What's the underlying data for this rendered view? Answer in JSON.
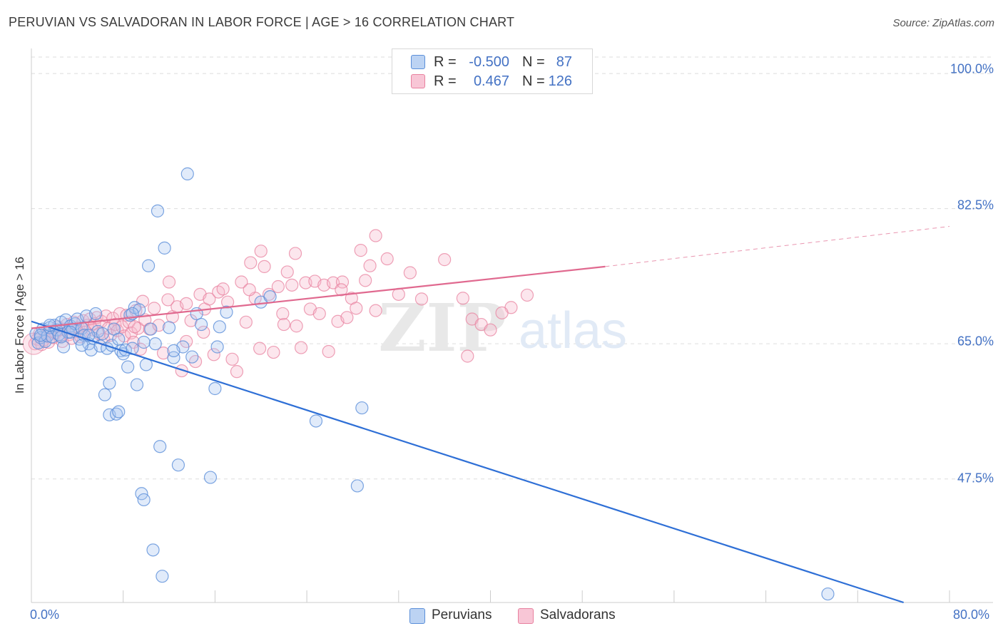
{
  "title": "PERUVIAN VS SALVADORAN IN LABOR FORCE | AGE > 16 CORRELATION CHART",
  "source": "Source: ZipAtlas.com",
  "watermark": {
    "zip": "ZIP",
    "atlas": "atlas"
  },
  "legend": {
    "rows": [
      {
        "r_label": "R =",
        "r_value": "-0.500",
        "n_label": "N =",
        "n_value": "87"
      },
      {
        "r_label": "R =",
        "r_value": "0.467",
        "n_label": "N =",
        "n_value": "126"
      }
    ]
  },
  "bottom_legend": {
    "peruvians": "Peruvians",
    "salvadorans": "Salvadorans"
  },
  "colors": {
    "peruvian_fill": "#a9c6f0",
    "peruvian_stroke": "#5b8fd9",
    "peruvian_line": "#2e6fd6",
    "salvadoran_fill": "#f5b8cc",
    "salvadoran_stroke": "#e8819f",
    "salvadoran_line": "#e0698f",
    "tick_label": "#4472c4",
    "grid": "#dddddd"
  },
  "chart_data": {
    "type": "scatter",
    "title": "PERUVIAN VS SALVADORAN IN LABOR FORCE | AGE > 16 CORRELATION CHART",
    "xlabel": "",
    "ylabel": "In Labor Force | Age > 16",
    "xlim": [
      0,
      80
    ],
    "ylim": [
      31.5,
      102.5
    ],
    "x_tick_labels": [
      "0.0%",
      "80.0%"
    ],
    "y_ticks": [
      47.5,
      65.0,
      82.5,
      100.0
    ],
    "y_tick_labels": [
      "47.5%",
      "65.0%",
      "82.5%",
      "100.0%"
    ],
    "grid": "horizontal dashed",
    "legend_position": "top-center",
    "series": [
      {
        "name": "Peruvians",
        "r": -0.5,
        "n": 87,
        "trend": {
          "x0": 0.0,
          "y0": 67.9,
          "x1": 76.0,
          "y1": 31.5
        },
        "points": [
          [
            0.4,
            66.3
          ],
          [
            0.6,
            65.1
          ],
          [
            0.8,
            65.8
          ],
          [
            1.0,
            66.9
          ],
          [
            1.2,
            65.3
          ],
          [
            1.4,
            66.0
          ],
          [
            1.6,
            67.1
          ],
          [
            1.8,
            65.9
          ],
          [
            2.0,
            67.4
          ],
          [
            2.2,
            66.8
          ],
          [
            2.4,
            66.2
          ],
          [
            2.6,
            67.8
          ],
          [
            2.8,
            64.6
          ],
          [
            3.0,
            68.1
          ],
          [
            3.2,
            66.5
          ],
          [
            3.4,
            67.3
          ],
          [
            3.6,
            66.9
          ],
          [
            3.8,
            67.6
          ],
          [
            4.0,
            68.2
          ],
          [
            4.2,
            65.6
          ],
          [
            4.4,
            67.0
          ],
          [
            4.6,
            66.1
          ],
          [
            4.8,
            68.6
          ],
          [
            5.0,
            65.0
          ],
          [
            5.2,
            64.2
          ],
          [
            5.4,
            65.7
          ],
          [
            5.6,
            68.9
          ],
          [
            5.8,
            66.6
          ],
          [
            6.0,
            64.7
          ],
          [
            6.2,
            66.3
          ],
          [
            6.4,
            58.4
          ],
          [
            6.6,
            64.4
          ],
          [
            6.8,
            55.8
          ],
          [
            7.0,
            64.8
          ],
          [
            7.2,
            66.9
          ],
          [
            7.4,
            55.9
          ],
          [
            7.6,
            56.2
          ],
          [
            7.8,
            64.1
          ],
          [
            8.0,
            63.7
          ],
          [
            8.2,
            64.2
          ],
          [
            8.4,
            62.0
          ],
          [
            8.6,
            68.7
          ],
          [
            8.8,
            64.4
          ],
          [
            9.0,
            69.7
          ],
          [
            9.2,
            59.7
          ],
          [
            9.4,
            69.4
          ],
          [
            9.6,
            45.6
          ],
          [
            9.8,
            44.8
          ],
          [
            10.0,
            62.3
          ],
          [
            10.4,
            66.9
          ],
          [
            10.8,
            65.0
          ],
          [
            11.0,
            82.2
          ],
          [
            11.2,
            51.7
          ],
          [
            11.6,
            77.4
          ],
          [
            12.0,
            67.1
          ],
          [
            12.4,
            63.2
          ],
          [
            12.8,
            49.3
          ],
          [
            13.2,
            64.6
          ],
          [
            13.6,
            87.0
          ],
          [
            14.0,
            63.3
          ],
          [
            14.4,
            68.9
          ],
          [
            14.8,
            67.5
          ],
          [
            15.6,
            47.7
          ],
          [
            16.0,
            59.2
          ],
          [
            16.2,
            64.6
          ],
          [
            16.4,
            67.2
          ],
          [
            17.0,
            69.1
          ],
          [
            10.2,
            75.1
          ],
          [
            10.6,
            38.3
          ],
          [
            11.4,
            34.9
          ],
          [
            8.8,
            68.9
          ],
          [
            6.8,
            59.9
          ],
          [
            20.0,
            70.4
          ],
          [
            20.8,
            71.1
          ],
          [
            24.8,
            55.0
          ],
          [
            28.4,
            46.6
          ],
          [
            28.8,
            56.7
          ],
          [
            69.4,
            32.6
          ],
          [
            3.4,
            66.5
          ],
          [
            2.6,
            65.9
          ],
          [
            1.6,
            67.4
          ],
          [
            0.8,
            66.1
          ],
          [
            5.0,
            66.1
          ],
          [
            7.6,
            65.6
          ],
          [
            9.8,
            65.2
          ],
          [
            4.4,
            64.8
          ],
          [
            12.4,
            64.1
          ]
        ]
      },
      {
        "name": "Salvadorans",
        "r": 0.467,
        "n": 126,
        "trend": {
          "x0": 0.0,
          "y0": 67.0,
          "x1": 50.0,
          "y1": 75.0
        },
        "trend_ext": {
          "x0": 50.0,
          "y0": 75.0,
          "x1": 80.0,
          "y1": 80.2
        },
        "points": [
          [
            0.3,
            65.0
          ],
          [
            0.5,
            65.6
          ],
          [
            0.7,
            66.3
          ],
          [
            0.9,
            64.9
          ],
          [
            1.1,
            65.5
          ],
          [
            1.3,
            66.1
          ],
          [
            1.5,
            65.2
          ],
          [
            1.7,
            66.6
          ],
          [
            1.9,
            65.8
          ],
          [
            2.1,
            66.4
          ],
          [
            2.3,
            67.2
          ],
          [
            2.5,
            66.0
          ],
          [
            2.7,
            65.3
          ],
          [
            2.9,
            66.9
          ],
          [
            3.1,
            67.5
          ],
          [
            3.3,
            66.2
          ],
          [
            3.5,
            65.7
          ],
          [
            3.7,
            67.8
          ],
          [
            3.9,
            66.6
          ],
          [
            4.1,
            67.1
          ],
          [
            4.3,
            65.9
          ],
          [
            4.5,
            68.0
          ],
          [
            4.7,
            66.5
          ],
          [
            4.9,
            67.4
          ],
          [
            5.1,
            68.2
          ],
          [
            5.3,
            66.8
          ],
          [
            5.5,
            67.6
          ],
          [
            5.7,
            68.4
          ],
          [
            5.9,
            66.3
          ],
          [
            6.1,
            67.9
          ],
          [
            6.3,
            65.6
          ],
          [
            6.5,
            68.6
          ],
          [
            6.7,
            67.0
          ],
          [
            6.9,
            66.1
          ],
          [
            7.1,
            68.3
          ],
          [
            7.3,
            67.5
          ],
          [
            7.5,
            66.7
          ],
          [
            7.7,
            68.9
          ],
          [
            7.9,
            67.2
          ],
          [
            8.1,
            66.0
          ],
          [
            8.3,
            68.7
          ],
          [
            8.5,
            67.8
          ],
          [
            8.7,
            66.4
          ],
          [
            8.9,
            65.2
          ],
          [
            9.1,
            69.3
          ],
          [
            9.3,
            67.0
          ],
          [
            9.5,
            64.3
          ],
          [
            9.7,
            70.5
          ],
          [
            9.9,
            68.1
          ],
          [
            10.3,
            66.9
          ],
          [
            10.7,
            69.6
          ],
          [
            11.1,
            67.4
          ],
          [
            11.5,
            63.8
          ],
          [
            11.9,
            70.7
          ],
          [
            12.3,
            68.5
          ],
          [
            12.7,
            69.8
          ],
          [
            13.1,
            61.5
          ],
          [
            13.5,
            70.2
          ],
          [
            13.9,
            68.0
          ],
          [
            14.3,
            62.7
          ],
          [
            14.7,
            71.4
          ],
          [
            15.1,
            69.5
          ],
          [
            15.5,
            70.8
          ],
          [
            15.9,
            63.6
          ],
          [
            16.3,
            71.7
          ],
          [
            16.7,
            72.1
          ],
          [
            17.1,
            70.4
          ],
          [
            17.5,
            63.0
          ],
          [
            17.9,
            61.4
          ],
          [
            18.3,
            73.0
          ],
          [
            18.7,
            67.8
          ],
          [
            19.1,
            75.5
          ],
          [
            19.5,
            70.9
          ],
          [
            19.9,
            64.4
          ],
          [
            20.3,
            75.0
          ],
          [
            20.7,
            71.4
          ],
          [
            21.1,
            63.9
          ],
          [
            21.5,
            72.4
          ],
          [
            21.9,
            68.9
          ],
          [
            22.3,
            74.3
          ],
          [
            22.7,
            72.6
          ],
          [
            23.1,
            67.3
          ],
          [
            23.5,
            64.5
          ],
          [
            23.9,
            72.9
          ],
          [
            24.3,
            69.5
          ],
          [
            24.7,
            73.1
          ],
          [
            25.1,
            68.9
          ],
          [
            25.5,
            72.6
          ],
          [
            25.9,
            64.0
          ],
          [
            26.3,
            72.9
          ],
          [
            26.7,
            67.9
          ],
          [
            27.1,
            73.0
          ],
          [
            27.5,
            68.4
          ],
          [
            27.9,
            70.9
          ],
          [
            28.3,
            69.6
          ],
          [
            28.7,
            77.1
          ],
          [
            29.1,
            73.2
          ],
          [
            29.5,
            75.1
          ],
          [
            30.0,
            69.3
          ],
          [
            31.0,
            76.0
          ],
          [
            32.0,
            71.4
          ],
          [
            33.0,
            74.2
          ],
          [
            34.0,
            70.8
          ],
          [
            36.0,
            75.9
          ],
          [
            37.6,
            70.9
          ],
          [
            38.0,
            63.4
          ],
          [
            38.4,
            68.2
          ],
          [
            39.2,
            67.5
          ],
          [
            40.0,
            66.8
          ],
          [
            41.8,
            69.7
          ],
          [
            43.2,
            71.3
          ],
          [
            41.0,
            69.0
          ],
          [
            27.0,
            72.0
          ],
          [
            19.0,
            72.0
          ],
          [
            12.0,
            73.0
          ],
          [
            23.0,
            76.7
          ],
          [
            30.0,
            79.0
          ],
          [
            20.0,
            77.0
          ],
          [
            15.0,
            66.5
          ],
          [
            13.5,
            65.3
          ],
          [
            9.0,
            67.2
          ],
          [
            22.0,
            67.5
          ]
        ]
      }
    ]
  }
}
